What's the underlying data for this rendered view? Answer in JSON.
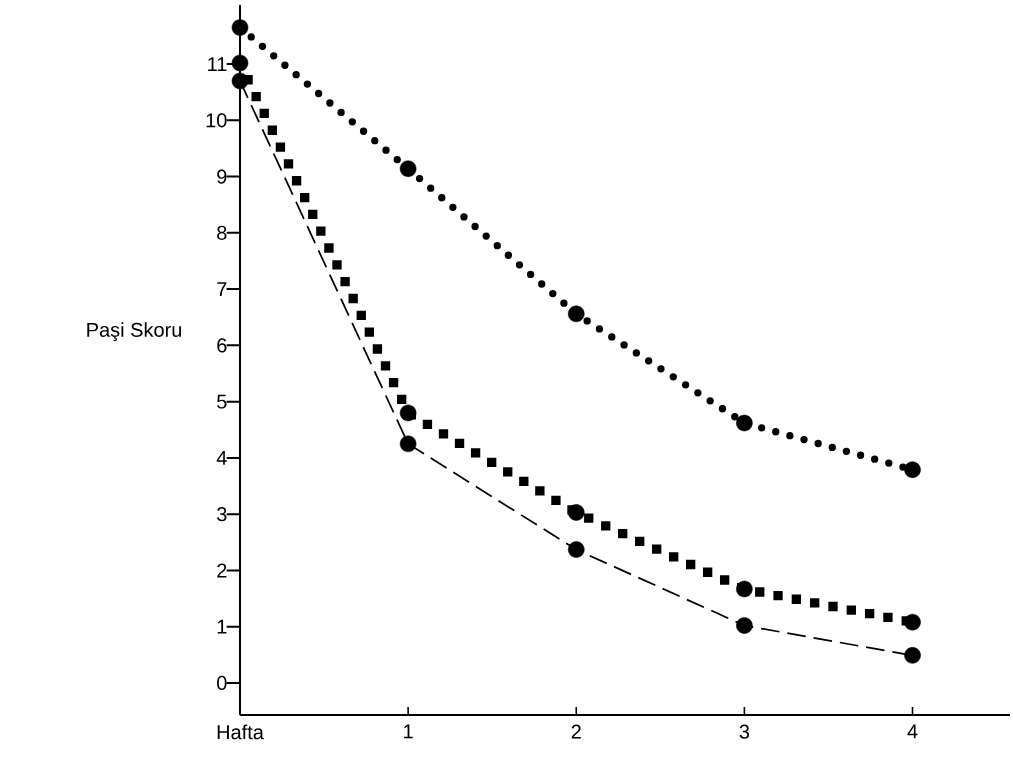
{
  "chart_data": {
    "type": "line",
    "ylabel": "Paşi Skoru",
    "x": [
      0,
      1,
      2,
      3,
      4
    ],
    "xlim": [
      0,
      4.58
    ],
    "ylim": [
      -0.57,
      12.05
    ],
    "xticks": [
      {
        "value": 0,
        "label": "Hafta"
      },
      1,
      2,
      3,
      4
    ],
    "yticks": [
      0,
      1,
      2,
      3,
      4,
      5,
      6,
      7,
      8,
      9,
      10,
      11
    ],
    "grid": false,
    "marker": "circle",
    "series": [
      {
        "color": "#000000",
        "line_style": "dotted",
        "values": [
          11.65,
          9.14,
          6.56,
          4.62,
          3.79
        ]
      },
      {
        "color": "#000000",
        "line_style": "dotted",
        "values": [
          11.02,
          4.8,
          3.03,
          1.67,
          1.08
        ]
      },
      {
        "color": "#000000",
        "line_style": "dashed",
        "values": [
          10.7,
          4.25,
          2.37,
          1.02,
          0.49
        ]
      }
    ]
  }
}
